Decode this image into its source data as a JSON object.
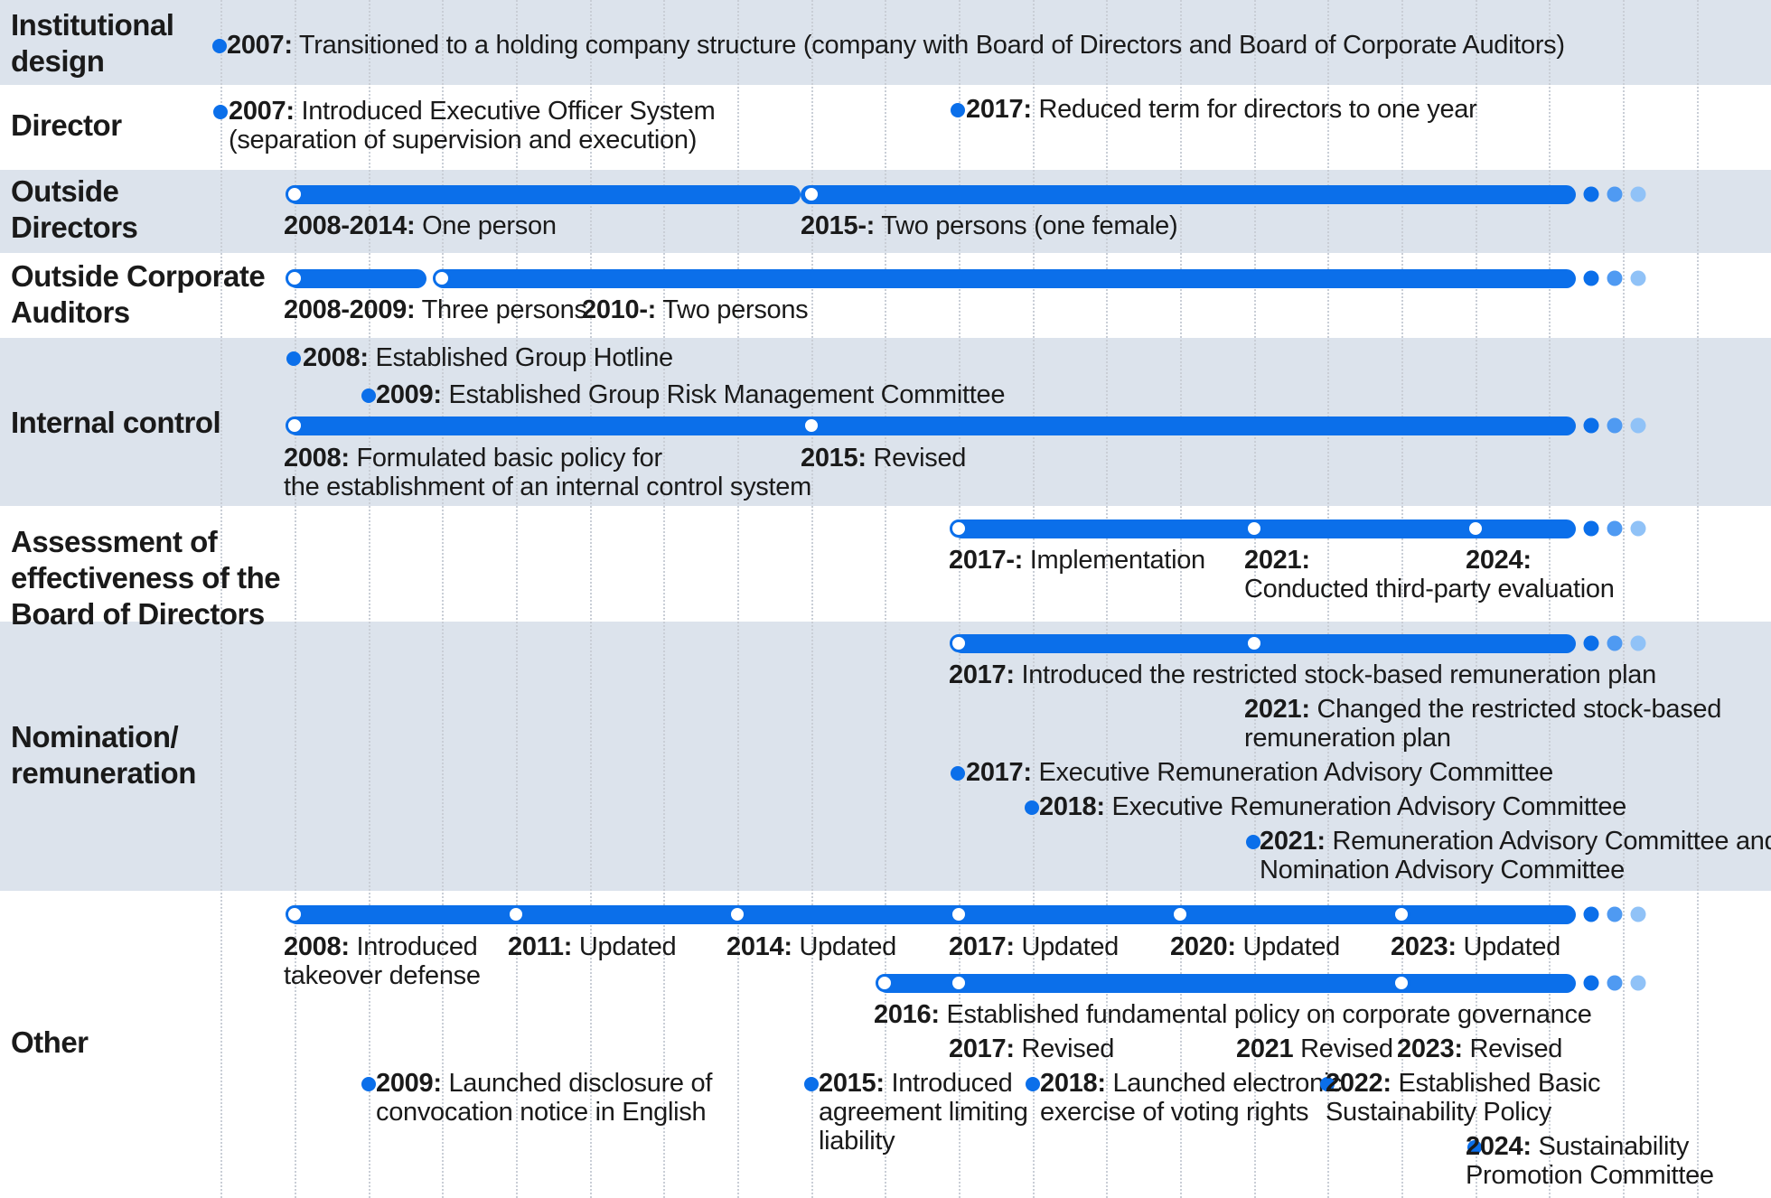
{
  "rows": [
    {
      "label_lines": [
        "Institutional",
        "design"
      ]
    },
    {
      "label_lines": [
        "Director"
      ]
    },
    {
      "label_lines": [
        "Outside",
        "Directors"
      ]
    },
    {
      "label_lines": [
        "Outside Corporate",
        "Auditors"
      ]
    },
    {
      "label_lines": [
        "Internal control"
      ]
    },
    {
      "label_lines": [
        "Assessment of",
        "effectiveness of the",
        "Board of Directors"
      ]
    },
    {
      "label_lines": [
        "Nomination/",
        "remuneration"
      ]
    },
    {
      "label_lines": [
        "Other"
      ]
    }
  ],
  "events": [
    {
      "year": "2007:",
      "lines": [
        "Transitioned to a holding company structure (company with Board of Directors and Board of Corporate Auditors)"
      ]
    },
    {
      "year": "2007:",
      "lines": [
        "Introduced Executive Officer System",
        "(separation of supervision and execution)"
      ]
    },
    {
      "year": "2017:",
      "lines": [
        "Reduced term for directors to one year"
      ]
    },
    {
      "year": "2008-2014:",
      "lines": [
        "One person"
      ]
    },
    {
      "year": "2015-:",
      "lines": [
        "Two persons (one female)"
      ]
    },
    {
      "year": "2008-2009:",
      "lines": [
        "Three persons"
      ]
    },
    {
      "year": "2010-:",
      "lines": [
        "Two persons"
      ]
    },
    {
      "year": "2008:",
      "lines": [
        "Established Group Hotline"
      ]
    },
    {
      "year": "2009:",
      "lines": [
        "Established Group Risk Management Committee"
      ]
    },
    {
      "year": "2008:",
      "lines": [
        "Formulated basic policy for",
        "the establishment of an internal control system"
      ]
    },
    {
      "year": "2015:",
      "lines": [
        "Revised"
      ]
    },
    {
      "year": "2017-:",
      "lines": [
        "Implementation"
      ]
    },
    {
      "year": "2021:",
      "lines": [
        "",
        "Conducted third-party evaluation"
      ]
    },
    {
      "year": "2024:",
      "lines": [
        ""
      ]
    },
    {
      "year": "2017:",
      "lines": [
        "Introduced the restricted stock-based remuneration plan"
      ]
    },
    {
      "year": "2021:",
      "lines": [
        "Changed the restricted stock-based",
        "remuneration plan"
      ]
    },
    {
      "year": "2017:",
      "lines": [
        "Executive Remuneration Advisory Committee"
      ]
    },
    {
      "year": "2018:",
      "lines": [
        "Executive Remuneration Advisory Committee"
      ]
    },
    {
      "year": "2021:",
      "lines": [
        "Remuneration Advisory Committee and",
        "Nomination Advisory Committee"
      ]
    },
    {
      "year": "2008:",
      "lines": [
        "Introduced",
        "takeover defense"
      ]
    },
    {
      "year": "2011:",
      "lines": [
        "Updated"
      ]
    },
    {
      "year": "2014:",
      "lines": [
        "Updated"
      ]
    },
    {
      "year": "2017:",
      "lines": [
        "Updated"
      ]
    },
    {
      "year": "2020:",
      "lines": [
        "Updated"
      ]
    },
    {
      "year": "2023:",
      "lines": [
        "Updated"
      ]
    },
    {
      "year": "2016:",
      "lines": [
        "Established fundamental policy on corporate governance"
      ]
    },
    {
      "year": "2017:",
      "lines": [
        "Revised"
      ]
    },
    {
      "year": "2021",
      "lines": [
        "Revised"
      ]
    },
    {
      "year": "2023:",
      "lines": [
        "Revised"
      ]
    },
    {
      "year": "2009:",
      "lines": [
        "Launched disclosure of",
        "convocation notice in English"
      ]
    },
    {
      "year": "2015:",
      "lines": [
        "Introduced",
        "agreement limiting",
        "liability"
      ]
    },
    {
      "year": "2018:",
      "lines": [
        "Launched electronic",
        "exercise of voting rights"
      ]
    },
    {
      "year": "2022:",
      "lines": [
        "Established Basic",
        "Sustainability Policy"
      ]
    },
    {
      "year": "2024:",
      "lines": [
        "Sustainability",
        "Promotion Committee"
      ]
    }
  ],
  "colors": {
    "bar": "#0b6fea",
    "band": "#dce3ec",
    "dot_mid": "#4f9af2",
    "dot_light": "#90c2f7"
  }
}
